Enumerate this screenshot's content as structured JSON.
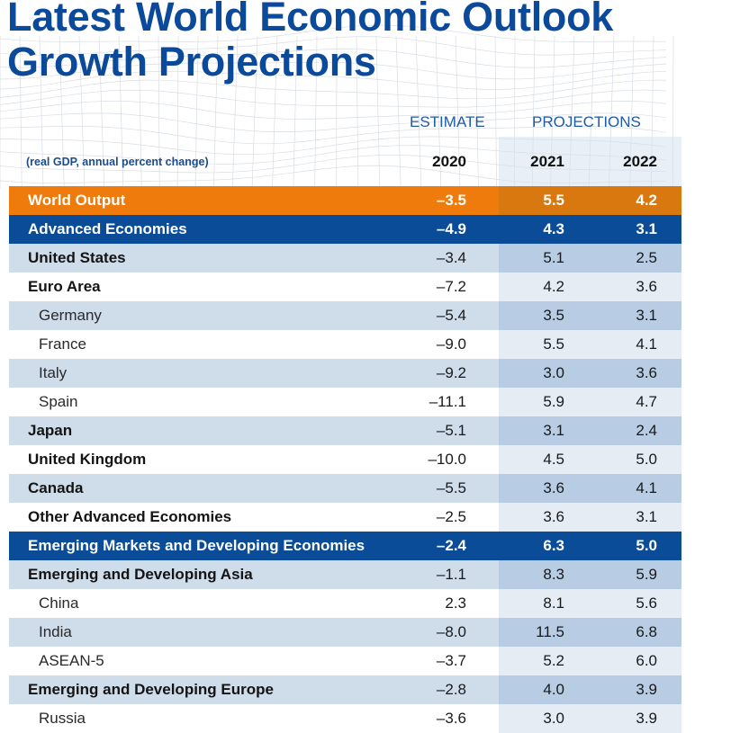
{
  "title": {
    "line1": "Latest World Economic Outlook",
    "line2": "Growth Projections"
  },
  "header": {
    "estimate_label": "ESTIMATE",
    "projections_label": "PROJECTIONS",
    "subtitle": "(real GDP, annual percent change)",
    "years": [
      "2020",
      "2021",
      "2022"
    ]
  },
  "colors": {
    "title_blue": "#0b4a9b",
    "world_orange": "#ee7b0c",
    "region_blue": "#0a4c98",
    "shade_row": "#cfdcea",
    "projection_shade": "#b8cce3"
  },
  "rows": [
    {
      "name": "World Output",
      "style": "world",
      "v2020": "–3.5",
      "v2021": "5.5",
      "v2022": "4.2"
    },
    {
      "name": "Advanced Economies",
      "style": "region",
      "v2020": "–4.9",
      "v2021": "4.3",
      "v2022": "3.1"
    },
    {
      "name": "United States",
      "style": "shade",
      "v2020": "–3.4",
      "v2021": "5.1",
      "v2022": "2.5"
    },
    {
      "name": "Euro Area",
      "style": "plain",
      "v2020": "–7.2",
      "v2021": "4.2",
      "v2022": "3.6"
    },
    {
      "name": "Germany",
      "style": "shade indent",
      "v2020": "–5.4",
      "v2021": "3.5",
      "v2022": "3.1"
    },
    {
      "name": "France",
      "style": "plain indent",
      "v2020": "–9.0",
      "v2021": "5.5",
      "v2022": "4.1"
    },
    {
      "name": "Italy",
      "style": "shade indent",
      "v2020": "–9.2",
      "v2021": "3.0",
      "v2022": "3.6"
    },
    {
      "name": "Spain",
      "style": "plain indent",
      "v2020": "–11.1",
      "v2021": "5.9",
      "v2022": "4.7"
    },
    {
      "name": "Japan",
      "style": "shade",
      "v2020": "–5.1",
      "v2021": "3.1",
      "v2022": "2.4"
    },
    {
      "name": "United Kingdom",
      "style": "plain",
      "v2020": "–10.0",
      "v2021": "4.5",
      "v2022": "5.0"
    },
    {
      "name": "Canada",
      "style": "shade",
      "v2020": "–5.5",
      "v2021": "3.6",
      "v2022": "4.1"
    },
    {
      "name": "Other Advanced Economies",
      "style": "plain",
      "v2020": "–2.5",
      "v2021": "3.6",
      "v2022": "3.1"
    },
    {
      "name": "Emerging Markets and Developing Economies",
      "style": "region",
      "v2020": "–2.4",
      "v2021": "6.3",
      "v2022": "5.0"
    },
    {
      "name": "Emerging and Developing Asia",
      "style": "shade",
      "v2020": "–1.1",
      "v2021": "8.3",
      "v2022": "5.9"
    },
    {
      "name": "China",
      "style": "plain indent",
      "v2020": "2.3",
      "v2021": "8.1",
      "v2022": "5.6"
    },
    {
      "name": "India",
      "style": "shade indent",
      "v2020": "–8.0",
      "v2021": "11.5",
      "v2022": "6.8"
    },
    {
      "name": "ASEAN-5",
      "style": "plain indent",
      "v2020": "–3.7",
      "v2021": "5.2",
      "v2022": "6.0"
    },
    {
      "name": "Emerging and Developing Europe",
      "style": "shade",
      "v2020": "–2.8",
      "v2021": "4.0",
      "v2022": "3.9"
    },
    {
      "name": "Russia",
      "style": "plain indent",
      "v2020": "–3.6",
      "v2021": "3.0",
      "v2022": "3.9"
    }
  ]
}
